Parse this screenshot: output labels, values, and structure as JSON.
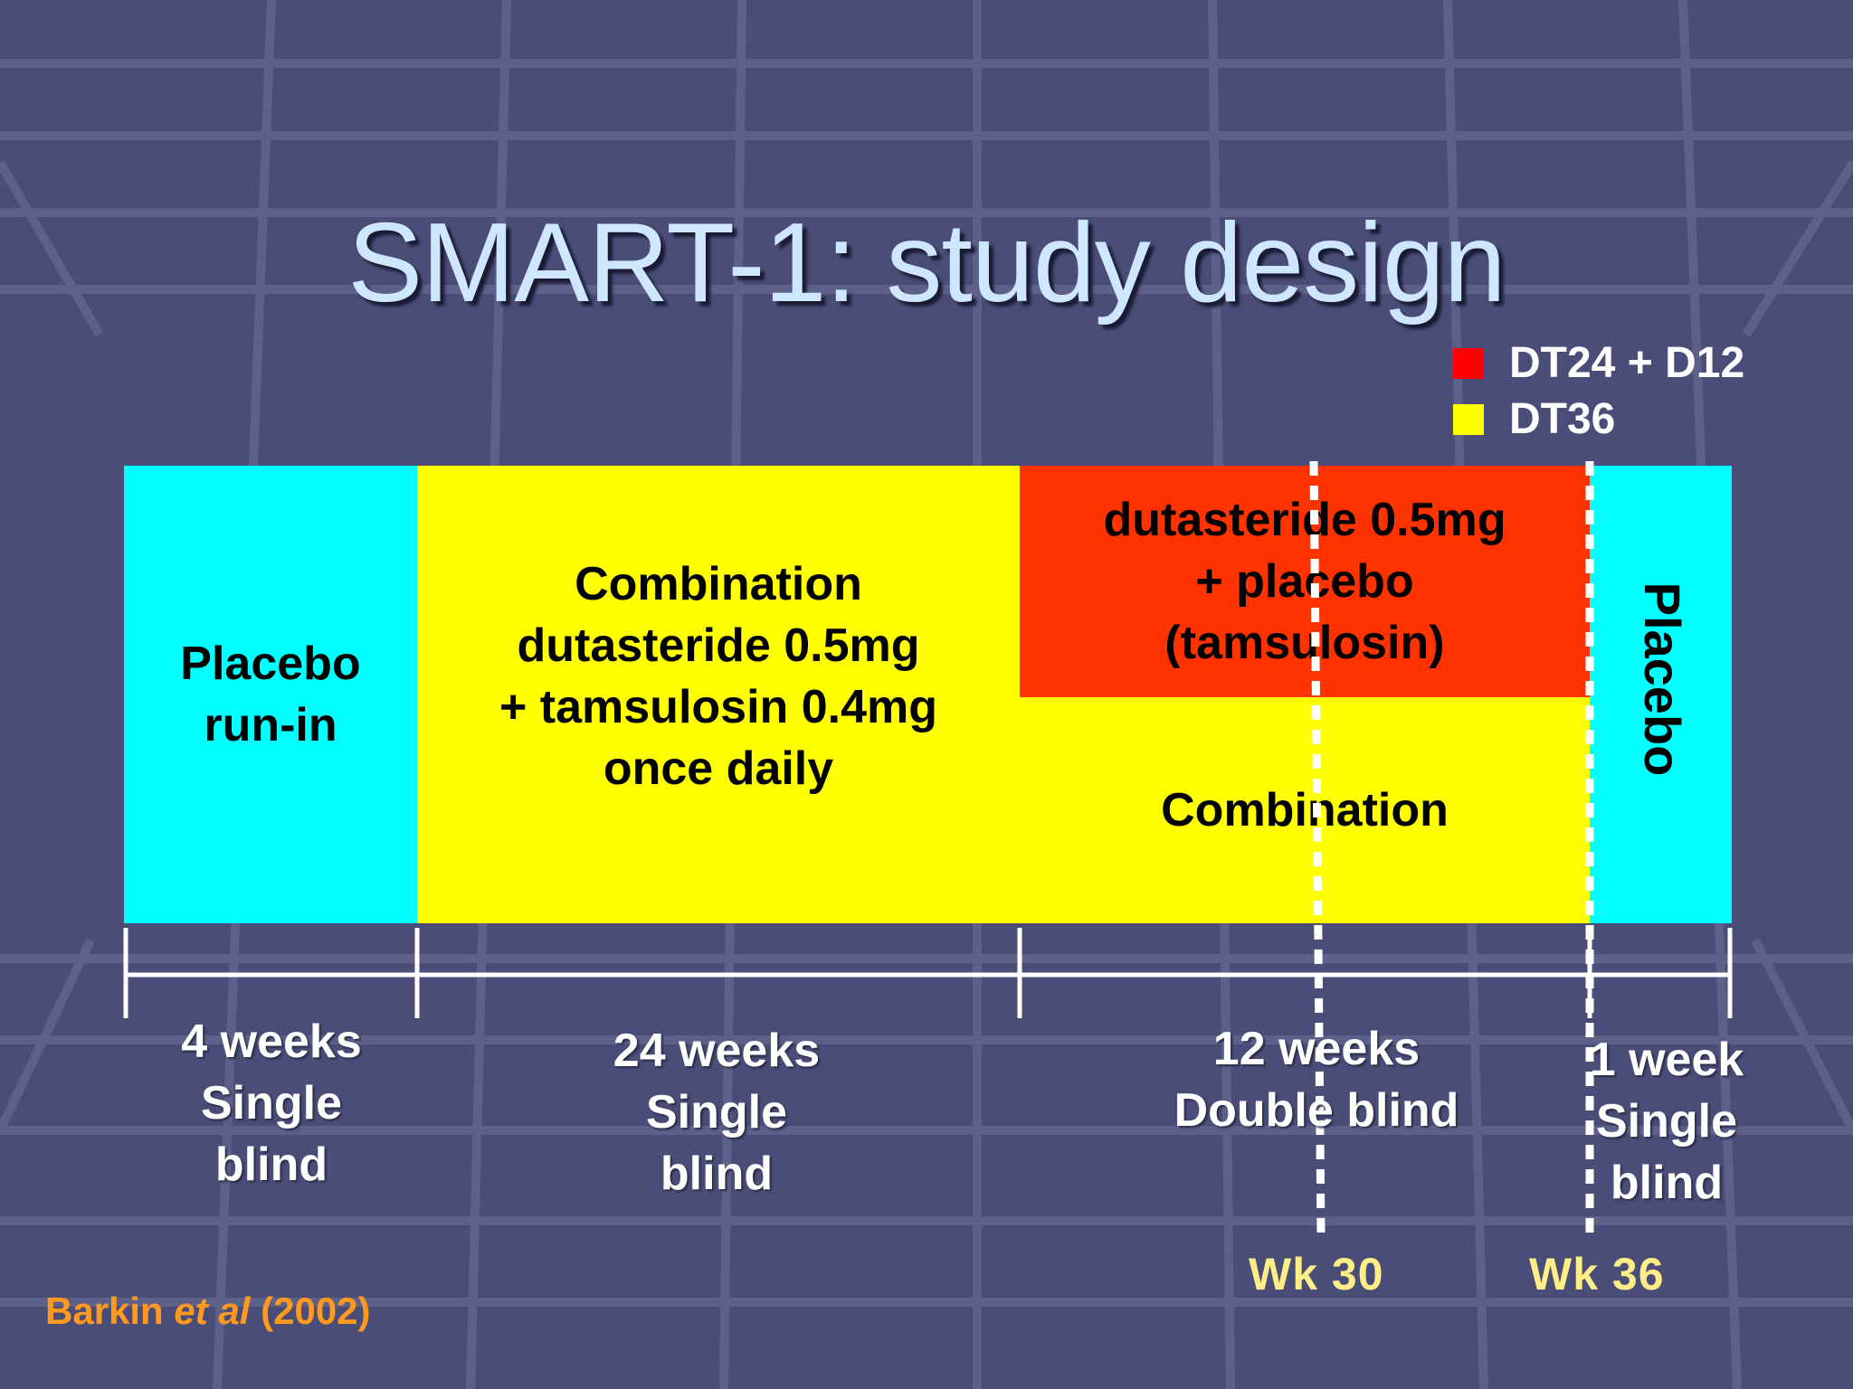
{
  "title": "SMART-1: study design",
  "legend": [
    {
      "label": "DT24 + D12",
      "color": "#ff0000"
    },
    {
      "label": "DT36",
      "color": "#ffff00"
    }
  ],
  "colors": {
    "background": "#4a4d78",
    "placebo": "#00ffff",
    "combination": "#ffff00",
    "dutasteride": "#ff3300"
  },
  "blocks": {
    "placebo_runin": [
      "Placebo",
      "run-in"
    ],
    "combination_main": [
      "Combination",
      "dutasteride 0.5mg",
      "+ tamsulosin 0.4mg",
      "once daily"
    ],
    "dutasteride_placebo": [
      "dutasteride 0.5mg",
      "+ placebo",
      "(tamsulosin)"
    ],
    "combination_short": "Combination",
    "placebo_end": "Placebo"
  },
  "timeline": [
    {
      "lines": [
        "4 weeks",
        "Single",
        "blind"
      ]
    },
    {
      "lines": [
        "24 weeks",
        "Single",
        "blind"
      ]
    },
    {
      "lines": [
        "12 weeks",
        "Double blind"
      ]
    },
    {
      "lines": [
        "1 week",
        "Single",
        "blind"
      ]
    }
  ],
  "markers": [
    "Wk 30",
    "Wk 36"
  ],
  "citation": {
    "author": "Barkin",
    "etal": "et al",
    "year": "(2002)"
  }
}
